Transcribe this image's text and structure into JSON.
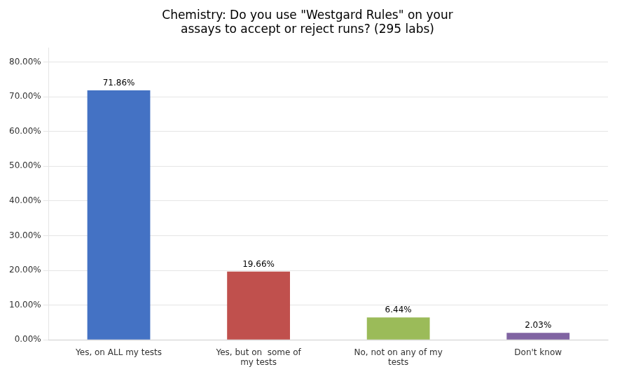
{
  "chart_data": {
    "type": "bar",
    "title": "Chemistry: Do you use \"Westgard Rules\" on your\nassays to accept or reject runs? (295 labs)",
    "categories": [
      "Yes, on ALL my tests",
      "Yes, but on  some of\nmy tests",
      "No, not on any of my\ntests",
      "Don't know"
    ],
    "values": [
      71.86,
      19.66,
      6.44,
      2.03
    ],
    "value_labels": [
      "71.86%",
      "19.66%",
      "6.44%",
      "2.03%"
    ],
    "data_labels": true,
    "colors": [
      "#4472C4",
      "#C0504D",
      "#9BBB59",
      "#8064A2"
    ],
    "ylim": [
      0,
      84
    ],
    "yticks": [
      {
        "value": 0,
        "label": "0.00%"
      },
      {
        "value": 10,
        "label": "10.00%"
      },
      {
        "value": 20,
        "label": "20.00%"
      },
      {
        "value": 30,
        "label": "30.00%"
      },
      {
        "value": 40,
        "label": "40.00%"
      },
      {
        "value": 50,
        "label": "50.00%"
      },
      {
        "value": 60,
        "label": "60.00%"
      },
      {
        "value": 70,
        "label": "70.00%"
      },
      {
        "value": 80,
        "label": "80.00%"
      }
    ],
    "grid": true
  }
}
